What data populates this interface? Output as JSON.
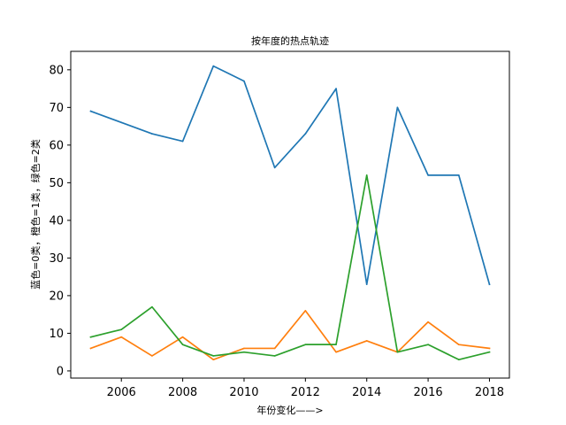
{
  "chart_data": {
    "type": "line",
    "title": "按年度的热点轨迹",
    "xlabel": "年份变化——>",
    "ylabel": "蓝色=0类，橙色=1类，绿色=2类",
    "x": [
      2005,
      2006,
      2007,
      2008,
      2009,
      2010,
      2011,
      2012,
      2013,
      2014,
      2015,
      2016,
      2017,
      2018
    ],
    "xticks": [
      2006,
      2008,
      2010,
      2012,
      2014,
      2016,
      2018
    ],
    "yticks": [
      0,
      10,
      20,
      30,
      40,
      50,
      60,
      70,
      80
    ],
    "xlim": [
      2004.35,
      2018.65
    ],
    "ylim": [
      -1.9,
      84.9
    ],
    "grid": false,
    "series": [
      {
        "color": "#1f77b4",
        "values": [
          69,
          66,
          63,
          61,
          81,
          77,
          54,
          63,
          75,
          23,
          70,
          52,
          52,
          23
        ]
      },
      {
        "color": "#ff7f0e",
        "values": [
          6,
          9,
          4,
          9,
          3,
          6,
          6,
          16,
          5,
          8,
          5,
          13,
          7,
          6
        ]
      },
      {
        "color": "#2ca02c",
        "values": [
          9,
          11,
          17,
          7,
          4,
          5,
          4,
          7,
          7,
          52,
          5,
          7,
          3,
          5
        ]
      }
    ]
  }
}
